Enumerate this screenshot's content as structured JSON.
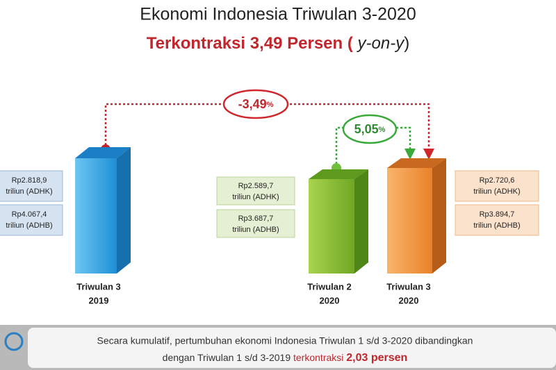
{
  "title": "Ekonomi Indonesia Triwulan 3-2020",
  "subtitle": [
    "Terkontraksi 3,49 Persen (",
    "y-on-y",
    ")"
  ],
  "badges": [
    {
      "value": "-3,49",
      "unit": "%"
    },
    {
      "value": "5,05",
      "unit": "%"
    }
  ],
  "bars": [
    {
      "label": [
        "Triwulan 3",
        "2019"
      ],
      "adhk": [
        "Rp2.818,9",
        "triliun (ADHK)"
      ],
      "adhb": [
        "Rp4.067,4",
        "triliun (ADHB)"
      ]
    },
    {
      "label": [
        "Triwulan 2",
        "2020"
      ],
      "adhk": [
        "Rp2.589,7",
        "triliun (ADHK)"
      ],
      "adhb": [
        "Rp3.687,7",
        "triliun (ADHB)"
      ]
    },
    {
      "label": [
        "Triwulan 3",
        "2020"
      ],
      "adhk": [
        "Rp2.720,6",
        "triliun (ADHK)"
      ],
      "adhb": [
        "Rp3.894,7",
        "triliun (ADHB)"
      ]
    }
  ],
  "footer": {
    "line1": "Secara kumulatif, pertumbuhan ekonomi Indonesia Triwulan 1 s/d 3-2020 dibandingkan",
    "line2": [
      "dengan Triwulan 1 s/d 3-2019",
      "terkontraksi",
      "2,03 persen"
    ]
  }
}
